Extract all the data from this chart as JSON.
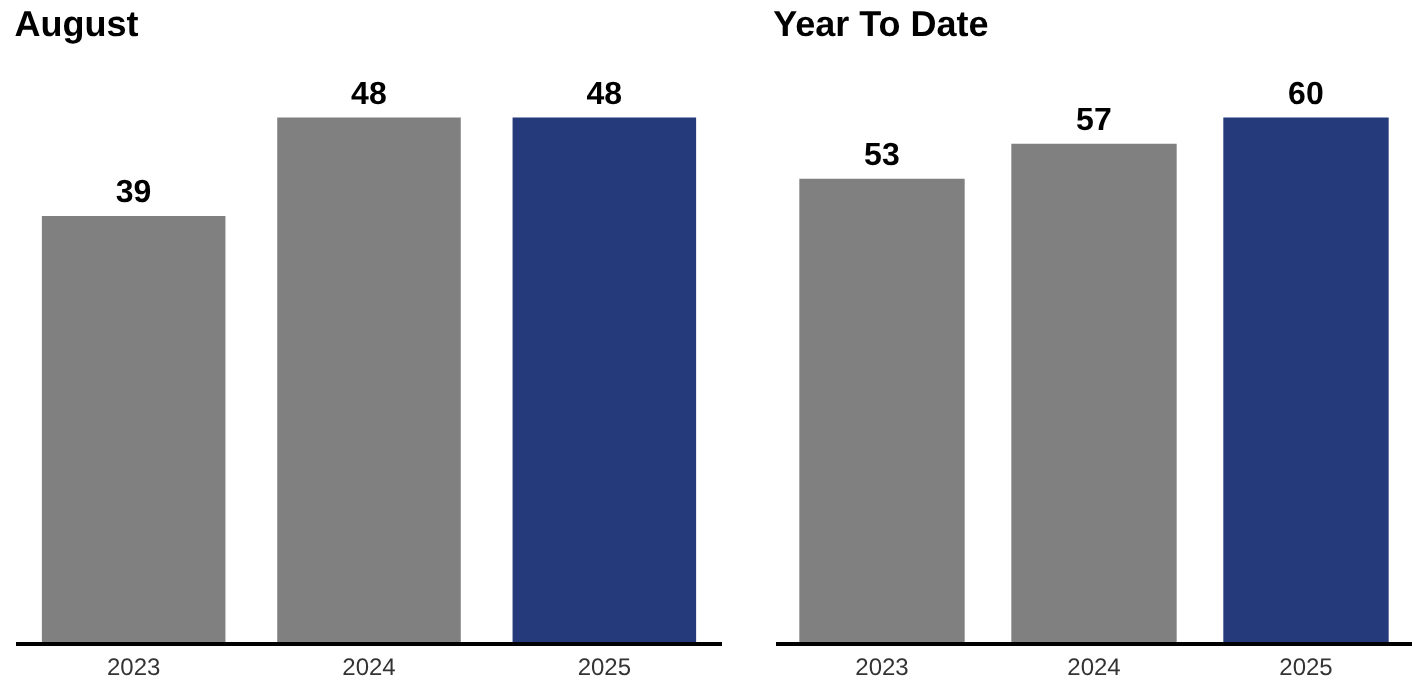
{
  "chart_data": [
    {
      "type": "bar",
      "title": "August",
      "categories": [
        "2023",
        "2024",
        "2025"
      ],
      "values": [
        39,
        48,
        48
      ],
      "colors": [
        "#808080",
        "#808080",
        "#253a7a"
      ],
      "data_labels": true,
      "tick_labels": "x"
    },
    {
      "type": "bar",
      "title": "Year To Date",
      "categories": [
        "2023",
        "2024",
        "2025"
      ],
      "values": [
        53,
        57,
        60
      ],
      "colors": [
        "#808080",
        "#808080",
        "#253a7a"
      ],
      "data_labels": true,
      "tick_labels": "x"
    }
  ]
}
